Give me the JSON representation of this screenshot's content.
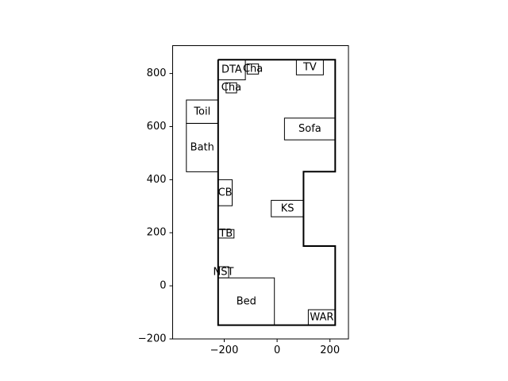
{
  "chart_data": {
    "type": "floorplan",
    "xlim": [
      -395,
      270
    ],
    "ylim": [
      -200,
      905
    ],
    "x_ticks": [
      {
        "value": -200,
        "label": "−200"
      },
      {
        "value": 0,
        "label": "0"
      },
      {
        "value": 200,
        "label": "200"
      }
    ],
    "y_ticks": [
      {
        "value": -200,
        "label": "−200"
      },
      {
        "value": 0,
        "label": "0"
      },
      {
        "value": 200,
        "label": "200"
      },
      {
        "value": 400,
        "label": "400"
      },
      {
        "value": 600,
        "label": "600"
      },
      {
        "value": 800,
        "label": "800"
      }
    ],
    "walls": [
      {
        "points": [
          [
            -223,
            852
          ],
          [
            -223,
            -148
          ],
          [
            220,
            -148
          ],
          [
            220,
            150
          ],
          [
            100,
            150
          ],
          [
            100,
            430
          ],
          [
            220,
            430
          ],
          [
            220,
            852
          ],
          [
            -223,
            852
          ]
        ]
      }
    ],
    "rooms": [
      {
        "label": "Toil",
        "x": [
          -343,
          -223
        ],
        "y": [
          612,
          700
        ]
      },
      {
        "label": "Bath",
        "x": [
          -343,
          -223
        ],
        "y": [
          430,
          612
        ]
      }
    ],
    "furniture": [
      {
        "label": "DTA",
        "x": [
          -223,
          -120
        ],
        "y": [
          776,
          852
        ]
      },
      {
        "label": "Cha",
        "x": [
          -113,
          -70
        ],
        "y": [
          798,
          836
        ]
      },
      {
        "label": "Cha",
        "x": [
          -193,
          -153
        ],
        "y": [
          727,
          765
        ]
      },
      {
        "label": "TV",
        "x": [
          73,
          175
        ],
        "y": [
          795,
          852
        ]
      },
      {
        "label": "Sofa",
        "x": [
          28,
          220
        ],
        "y": [
          550,
          632
        ]
      },
      {
        "label": "CB",
        "x": [
          -223,
          -170
        ],
        "y": [
          302,
          400
        ]
      },
      {
        "label": "KS",
        "x": [
          -22,
          100
        ],
        "y": [
          260,
          322
        ]
      },
      {
        "label": "TB",
        "x": [
          -223,
          -163
        ],
        "y": [
          180,
          212
        ]
      },
      {
        "label": "NST",
        "x": [
          -223,
          -183
        ],
        "y": [
          30,
          72
        ]
      },
      {
        "label": "Bed",
        "x": [
          -223,
          -10
        ],
        "y": [
          -148,
          30
        ]
      },
      {
        "label": "WAR",
        "x": [
          118,
          220
        ],
        "y": [
          -148,
          -90
        ]
      }
    ]
  }
}
